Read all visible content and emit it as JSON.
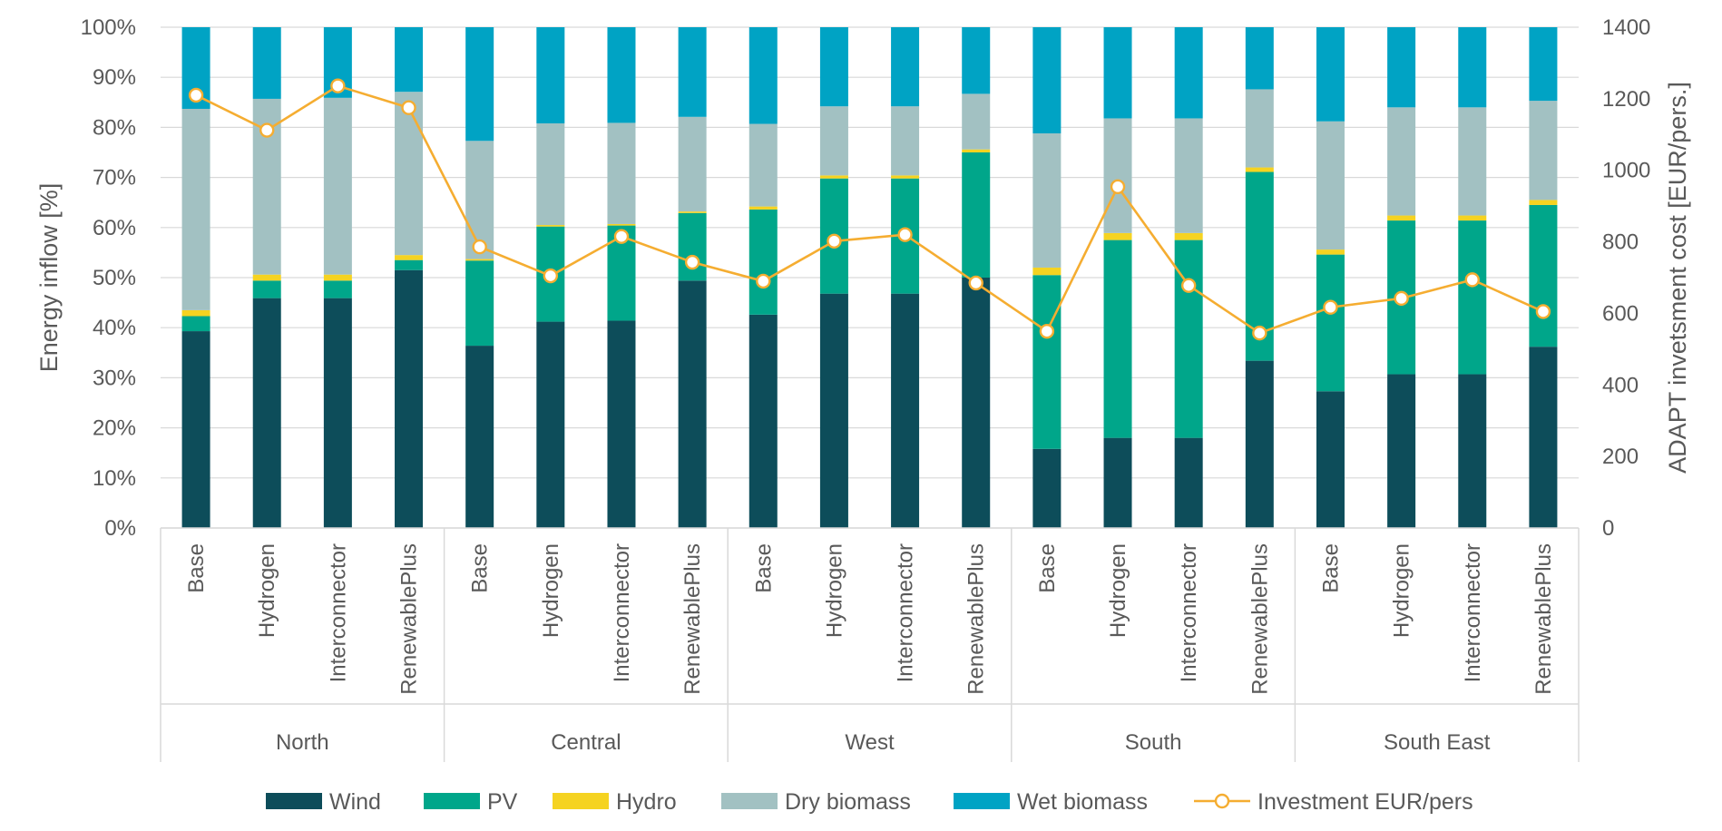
{
  "chart_data": {
    "type": "bar",
    "stacked": true,
    "ylabel": "Energy inflow [%]",
    "y2label": "ADAPT invetsment cost [EUR/pers.]",
    "ylim": [
      0,
      100
    ],
    "y2lim": [
      0,
      1400
    ],
    "y_ticks": [
      "0%",
      "10%",
      "20%",
      "30%",
      "40%",
      "50%",
      "60%",
      "70%",
      "80%",
      "90%",
      "100%"
    ],
    "y2_ticks": [
      "0",
      "200",
      "400",
      "600",
      "800",
      "1000",
      "1200",
      "1400"
    ],
    "grid": true,
    "legend_position": "bottom",
    "groups": [
      "North",
      "Central",
      "West",
      "South",
      "South East"
    ],
    "scenarios": [
      "Base",
      "Hydrogen",
      "Interconnector",
      "RenewablePlus"
    ],
    "colors": {
      "Wind": "#0d4d5a",
      "PV": "#00a68a",
      "Hydro": "#f5d321",
      "Dry biomass": "#a2c1c2",
      "Wet biomass": "#00a3c4",
      "Investment EUR/pers": "#f5ad31"
    },
    "series": [
      {
        "name": "Wind",
        "values": [
          39.3,
          45.9,
          45.9,
          51.5,
          36.4,
          41.2,
          41.4,
          49.4,
          42.6,
          46.8,
          46.8,
          50.0,
          15.8,
          18.0,
          18.0,
          33.4,
          27.3,
          30.7,
          30.7,
          36.2
        ]
      },
      {
        "name": "PV",
        "values": [
          3.0,
          3.5,
          3.5,
          2.0,
          17.0,
          19.0,
          19.0,
          13.5,
          21.0,
          23.0,
          23.0,
          25.0,
          34.7,
          39.5,
          39.5,
          37.7,
          27.3,
          30.7,
          30.7,
          28.3
        ]
      },
      {
        "name": "Hydro",
        "values": [
          1.2,
          1.2,
          1.2,
          1.0,
          0.3,
          0.3,
          0.3,
          0.3,
          0.6,
          0.6,
          0.6,
          0.6,
          1.5,
          1.4,
          1.4,
          0.9,
          1.0,
          1.0,
          1.0,
          1.0
        ]
      },
      {
        "name": "Dry biomass",
        "values": [
          40.2,
          35.1,
          35.3,
          32.6,
          23.6,
          20.3,
          20.2,
          18.9,
          16.5,
          13.8,
          13.8,
          11.1,
          26.8,
          22.9,
          22.9,
          15.6,
          25.6,
          21.6,
          21.6,
          19.8
        ]
      },
      {
        "name": "Wet biomass",
        "values": [
          16.3,
          14.3,
          14.1,
          12.9,
          22.7,
          19.2,
          19.1,
          17.9,
          19.3,
          15.8,
          15.8,
          13.3,
          21.2,
          18.2,
          18.2,
          12.4,
          18.8,
          16.0,
          16.0,
          14.7
        ]
      }
    ],
    "line_series": {
      "name": "Investment EUR/pers",
      "axis": "secondary",
      "values": [
        1210,
        1112,
        1236,
        1175,
        786,
        705,
        815,
        743,
        690,
        802,
        820,
        685,
        550,
        954,
        678,
        545,
        617,
        642,
        694,
        605
      ]
    }
  }
}
